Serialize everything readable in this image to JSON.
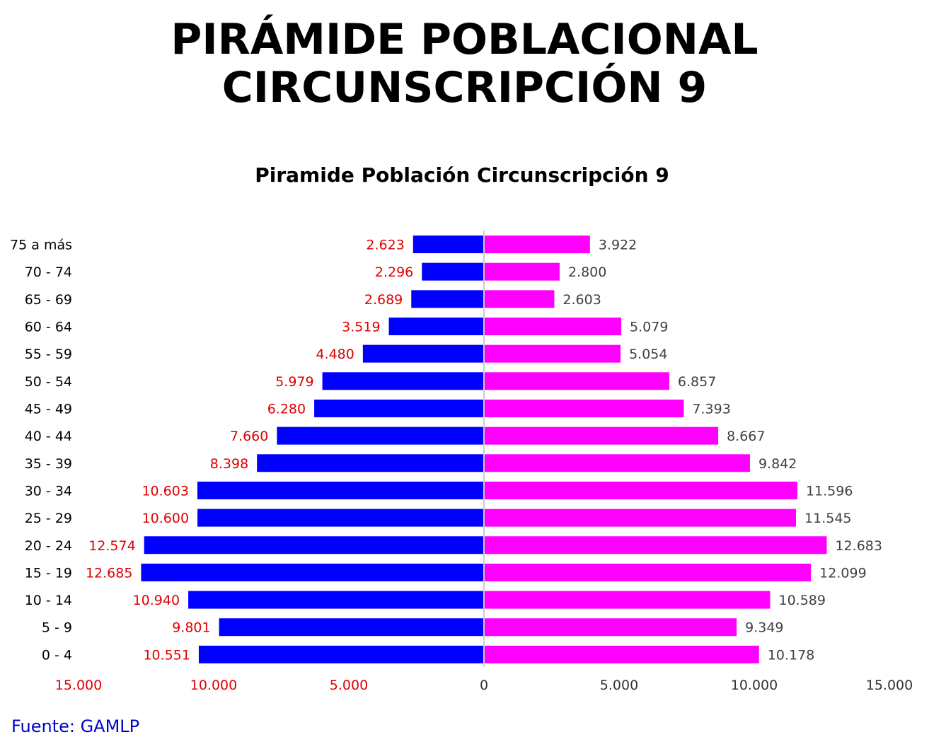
{
  "title": {
    "line1": "PIRÁMIDE POBLACIONAL",
    "line2": "CIRCUNSCRIPCIÓN 9"
  },
  "source": "Fuente: GAMLP",
  "chart_data": {
    "type": "bar",
    "orientation": "horizontal",
    "title": "Piramide Población Circunscripción 9",
    "categories": [
      "75 a más",
      "70 - 74",
      "65 - 69",
      "60 - 64",
      "55 - 59",
      "50 - 54",
      "45 - 49",
      "40 - 44",
      "35 - 39",
      "30 - 34",
      "25 - 29",
      "20 - 24",
      "15 - 19",
      "10 - 14",
      "5 - 9",
      "0 - 4"
    ],
    "series": [
      {
        "color": "#0000ff",
        "label_color": "#e00000",
        "side": "left",
        "values": [
          2623,
          2296,
          2689,
          3519,
          4480,
          5979,
          6280,
          7660,
          8398,
          10603,
          10600,
          12574,
          12685,
          10940,
          9801,
          10551
        ],
        "labels": [
          "2.623",
          "2.296",
          "2.689",
          "3.519",
          "4.480",
          "5.979",
          "6.280",
          "7.660",
          "8.398",
          "10.603",
          "10.600",
          "12.574",
          "12.685",
          "10.940",
          "9.801",
          "10.551"
        ]
      },
      {
        "color": "#ff00ff",
        "label_color": "#404040",
        "side": "right",
        "values": [
          3922,
          2800,
          2603,
          5079,
          5054,
          6857,
          7393,
          8667,
          9842,
          11596,
          11545,
          12683,
          12099,
          10589,
          9349,
          10178
        ],
        "labels": [
          "3.922",
          "2.800",
          "2.603",
          "5.079",
          "5.054",
          "6.857",
          "7.393",
          "8.667",
          "9.842",
          "11.596",
          "11.545",
          "12.683",
          "12.099",
          "10.589",
          "9.349",
          "10.178"
        ]
      }
    ],
    "xlim": [
      -15000,
      15000
    ],
    "x_ticks": [
      {
        "value": -15000,
        "label": "15.000",
        "color": "#e00000"
      },
      {
        "value": -10000,
        "label": "10.000",
        "color": "#e00000"
      },
      {
        "value": -5000,
        "label": "5.000",
        "color": "#e00000"
      },
      {
        "value": 0,
        "label": "0",
        "color": "#333333"
      },
      {
        "value": 5000,
        "label": "5.000",
        "color": "#333333"
      },
      {
        "value": 10000,
        "label": "10.000",
        "color": "#333333"
      },
      {
        "value": 15000,
        "label": "15.000",
        "color": "#333333"
      }
    ],
    "grid": false,
    "legend": "none"
  }
}
